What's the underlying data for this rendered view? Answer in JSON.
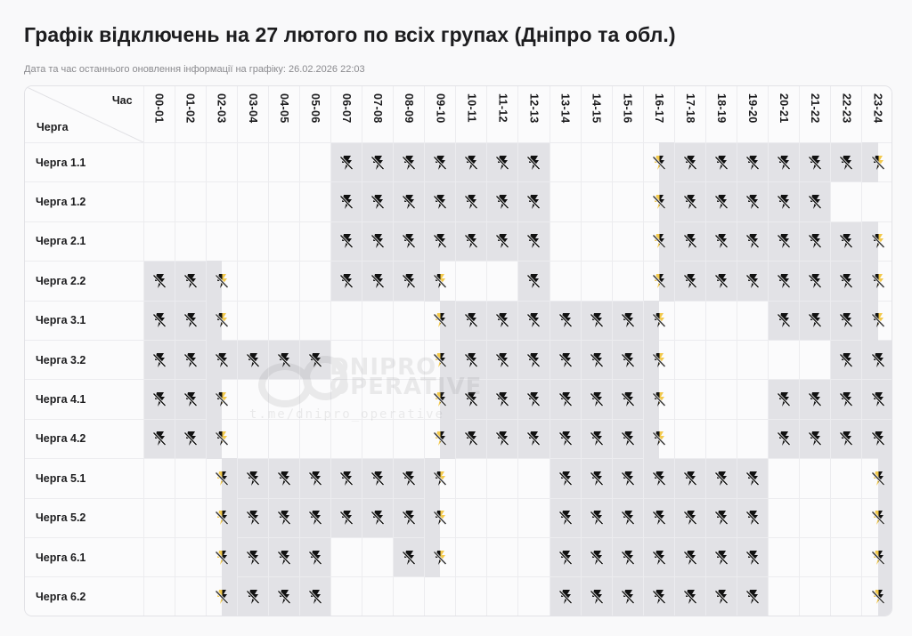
{
  "header": {
    "title": "Графік відключень на 27 лютого по всіх групах (Дніпро та обл.)",
    "subtitle": "Дата та час останнього оновлення інформації на графіку: 26.02.2026 22:03"
  },
  "table": {
    "corner_top_label": "Час",
    "corner_bottom_label": "Черга",
    "hours": [
      "00-01",
      "01-02",
      "02-03",
      "03-04",
      "04-05",
      "05-06",
      "06-07",
      "07-08",
      "08-09",
      "09-10",
      "10-11",
      "11-12",
      "12-13",
      "13-14",
      "14-15",
      "15-16",
      "16-17",
      "17-18",
      "18-19",
      "19-20",
      "20-21",
      "21-22",
      "22-23",
      "23-24"
    ],
    "legend": {
      "off": "full hour without power (gray cell, crossed-out lightning icon)",
      "on": "power available (empty cell)",
      "h1": "first half-hour without power, second half with power",
      "h2": "first half-hour with power, second half without power"
    },
    "colors": {
      "outage_bg": "#e2e2e6",
      "power_bg": "#fbfbfc",
      "icon_black": "#111111",
      "icon_yellow": "#f2c94c"
    },
    "rows": [
      {
        "label": "Черга 1.1",
        "cells": [
          "on",
          "on",
          "on",
          "on",
          "on",
          "on",
          "off",
          "off",
          "off",
          "off",
          "off",
          "off",
          "off",
          "on",
          "on",
          "on",
          "h2",
          "off",
          "off",
          "off",
          "off",
          "off",
          "off",
          "h1"
        ]
      },
      {
        "label": "Черга 1.2",
        "cells": [
          "on",
          "on",
          "on",
          "on",
          "on",
          "on",
          "off",
          "off",
          "off",
          "off",
          "off",
          "off",
          "off",
          "on",
          "on",
          "on",
          "h2",
          "off",
          "off",
          "off",
          "off",
          "off",
          "on",
          "on"
        ]
      },
      {
        "label": "Черга 2.1",
        "cells": [
          "on",
          "on",
          "on",
          "on",
          "on",
          "on",
          "off",
          "off",
          "off",
          "off",
          "off",
          "off",
          "off",
          "on",
          "on",
          "on",
          "h2",
          "off",
          "off",
          "off",
          "off",
          "off",
          "off",
          "h1"
        ]
      },
      {
        "label": "Черга 2.2",
        "cells": [
          "off",
          "off",
          "h1",
          "on",
          "on",
          "on",
          "off",
          "off",
          "off",
          "h1",
          "on",
          "on",
          "off",
          "on",
          "on",
          "on",
          "h2",
          "off",
          "off",
          "off",
          "off",
          "off",
          "off",
          "h1"
        ]
      },
      {
        "label": "Черга 3.1",
        "cells": [
          "off",
          "off",
          "h1",
          "on",
          "on",
          "on",
          "on",
          "on",
          "on",
          "h2",
          "off",
          "off",
          "off",
          "off",
          "off",
          "off",
          "h1",
          "on",
          "on",
          "on",
          "off",
          "off",
          "off",
          "h1"
        ]
      },
      {
        "label": "Черга 3.2",
        "cells": [
          "off",
          "off",
          "off",
          "off",
          "off",
          "off",
          "on",
          "on",
          "on",
          "h2",
          "off",
          "off",
          "off",
          "off",
          "off",
          "off",
          "h1",
          "on",
          "on",
          "on",
          "on",
          "on",
          "off",
          "off"
        ]
      },
      {
        "label": "Черга 4.1",
        "cells": [
          "off",
          "off",
          "h1",
          "on",
          "on",
          "on",
          "on",
          "on",
          "on",
          "h2",
          "off",
          "off",
          "off",
          "off",
          "off",
          "off",
          "h1",
          "on",
          "on",
          "on",
          "off",
          "off",
          "off",
          "off"
        ]
      },
      {
        "label": "Черга 4.2",
        "cells": [
          "off",
          "off",
          "h1",
          "on",
          "on",
          "on",
          "on",
          "on",
          "on",
          "h2",
          "off",
          "off",
          "off",
          "off",
          "off",
          "off",
          "h1",
          "on",
          "on",
          "on",
          "off",
          "off",
          "off",
          "off"
        ]
      },
      {
        "label": "Черга 5.1",
        "cells": [
          "on",
          "on",
          "h2",
          "off",
          "off",
          "off",
          "off",
          "off",
          "off",
          "h1",
          "on",
          "on",
          "on",
          "off",
          "off",
          "off",
          "off",
          "off",
          "off",
          "off",
          "on",
          "on",
          "on",
          "h2"
        ]
      },
      {
        "label": "Черга 5.2",
        "cells": [
          "on",
          "on",
          "h2",
          "off",
          "off",
          "off",
          "off",
          "off",
          "off",
          "h1",
          "on",
          "on",
          "on",
          "off",
          "off",
          "off",
          "off",
          "off",
          "off",
          "off",
          "on",
          "on",
          "on",
          "h2"
        ]
      },
      {
        "label": "Черга 6.1",
        "cells": [
          "on",
          "on",
          "h2",
          "off",
          "off",
          "off",
          "on",
          "on",
          "off",
          "h1",
          "on",
          "on",
          "on",
          "off",
          "off",
          "off",
          "off",
          "off",
          "off",
          "off",
          "on",
          "on",
          "on",
          "h2"
        ]
      },
      {
        "label": "Черга 6.2",
        "cells": [
          "on",
          "on",
          "h2",
          "off",
          "off",
          "off",
          "on",
          "on",
          "on",
          "on",
          "on",
          "on",
          "on",
          "off",
          "off",
          "off",
          "off",
          "off",
          "off",
          "off",
          "on",
          "on",
          "on",
          "h2"
        ]
      }
    ]
  },
  "watermark": {
    "brand": "DNIPRO OPERATIVE",
    "url": "t.me/dnipro_operative"
  }
}
